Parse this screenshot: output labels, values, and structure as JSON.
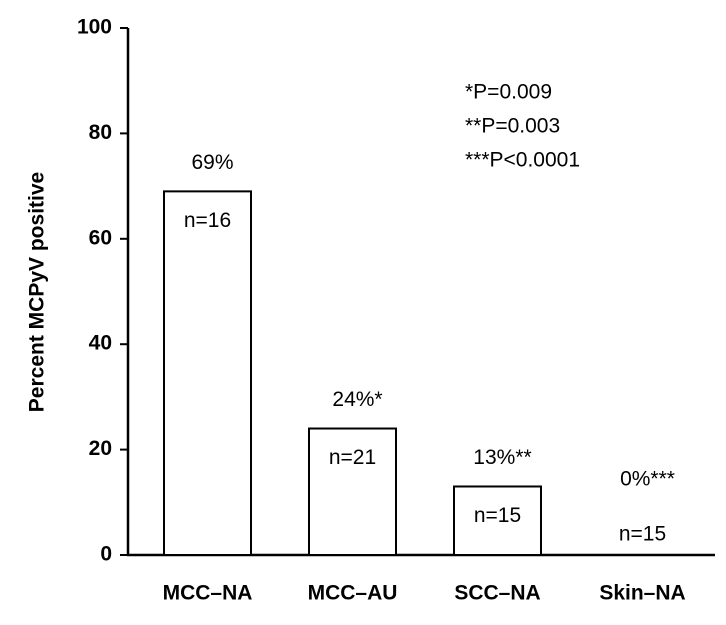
{
  "chart_data": {
    "type": "bar",
    "y_label": "Percent MCPyV positive",
    "categories": [
      "MCC–NA",
      "MCC–AU",
      "SCC–NA",
      "Skin–NA"
    ],
    "values": [
      69,
      24,
      13,
      0
    ],
    "value_labels": [
      "69%",
      "24%*",
      "13%**",
      "0%***"
    ],
    "sample_labels": [
      "n=16",
      "n=21",
      "n=15",
      "n=15"
    ],
    "annotations": [
      "*P=0.009",
      "**P=0.003",
      "***P<0.0001"
    ],
    "color": "#ffffff",
    "ylim": [
      0,
      100
    ],
    "yticks": [
      0,
      20,
      40,
      60,
      80,
      100
    ],
    "grid": false
  }
}
